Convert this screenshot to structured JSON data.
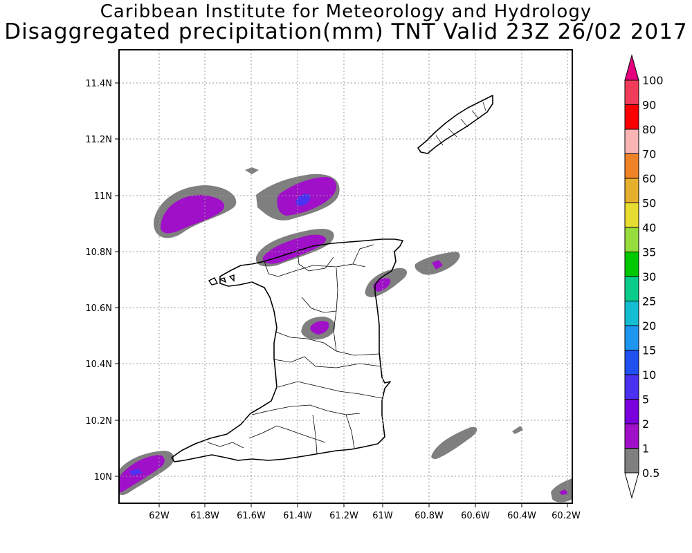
{
  "header": {
    "line1": "Caribbean Institute for Meteorology and Hydrology",
    "line2": "Disaggregated precipitation(mm) TNT Valid 23Z 26/02 2017"
  },
  "map": {
    "lon_range": [
      -62.2,
      -60.2
    ],
    "lat_range": [
      9.9,
      11.5
    ],
    "lon_ticks": [
      "62W",
      "61.8W",
      "61.6W",
      "61.4W",
      "61.2W",
      "61W",
      "60.8W",
      "60.6W",
      "60.4W",
      "60.2W"
    ],
    "lat_ticks": [
      "10N",
      "10.2N",
      "10.4N",
      "10.6N",
      "10.8N",
      "11N",
      "11.2N",
      "11.4N"
    ],
    "grid": true
  },
  "legend": {
    "levels": [
      "0.5",
      "1",
      "2",
      "5",
      "10",
      "15",
      "20",
      "25",
      "30",
      "35",
      "40",
      "50",
      "60",
      "70",
      "80",
      "90",
      "100"
    ],
    "colors": [
      "#ffffff",
      "#7f7f7f",
      "#a010c8",
      "#7a00dc",
      "#4b32f0",
      "#2050f0",
      "#1e96f0",
      "#14bed2",
      "#0acd8c",
      "#00c800",
      "#96dc3c",
      "#e6dc32",
      "#e6af2d",
      "#f08228",
      "#fab4b4",
      "#fa0000",
      "#f03c5a",
      "#e6007d"
    ]
  }
}
